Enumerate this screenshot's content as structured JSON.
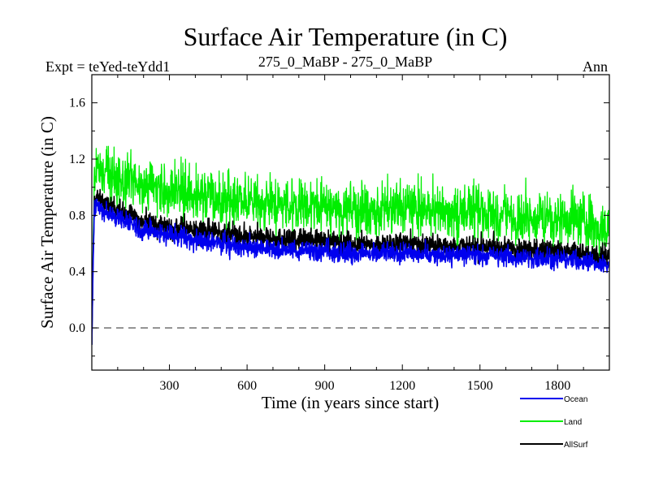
{
  "chart_data": {
    "type": "line",
    "title": "Surface Air Temperature (in C)",
    "subtitle_left": "Expt = teYed-teYdd1",
    "subtitle_center": "275_0_MaBP - 275_0_MaBP",
    "subtitle_right": "Ann",
    "xlabel": "Time (in years since start)",
    "ylabel": "Surface Air Temperature (in C)",
    "xlim": [
      0,
      2000
    ],
    "ylim": [
      -0.3,
      1.8
    ],
    "xticks": [
      300,
      600,
      900,
      1200,
      1500,
      1800
    ],
    "xtick_labels": [
      "300",
      "600",
      "900",
      "1200",
      "1500",
      "1800"
    ],
    "yticks": [
      0.0,
      0.4,
      0.8,
      1.2,
      1.6
    ],
    "ytick_labels": [
      "0.0",
      "0.4",
      "0.8",
      "1.2",
      "1.6"
    ],
    "zero_line": 0.0,
    "legend_position": "bottom-right",
    "series": [
      {
        "name": "Land",
        "color": "#00ee00",
        "x": [
          0,
          5,
          10,
          20,
          40,
          60,
          100,
          150,
          200,
          250,
          300,
          400,
          500,
          600,
          700,
          800,
          900,
          1000,
          1100,
          1200,
          1300,
          1400,
          1500,
          1600,
          1700,
          1800,
          1900,
          2000
        ],
        "values": [
          -0.12,
          0.6,
          1.05,
          1.15,
          1.08,
          1.1,
          1.06,
          1.04,
          1.02,
          1.0,
          0.98,
          0.95,
          0.92,
          0.88,
          0.87,
          0.88,
          0.86,
          0.84,
          0.83,
          0.85,
          0.84,
          0.82,
          0.83,
          0.8,
          0.79,
          0.78,
          0.74,
          0.7
        ],
        "noise": 0.22
      },
      {
        "name": "AllSurf",
        "color": "#000000",
        "x": [
          0,
          5,
          10,
          20,
          40,
          60,
          100,
          150,
          200,
          250,
          300,
          400,
          500,
          600,
          700,
          800,
          900,
          1000,
          1100,
          1200,
          1300,
          1400,
          1500,
          1600,
          1700,
          1800,
          1900,
          2000
        ],
        "values": [
          -0.12,
          0.5,
          0.9,
          0.95,
          0.9,
          0.88,
          0.84,
          0.8,
          0.76,
          0.74,
          0.72,
          0.7,
          0.67,
          0.64,
          0.64,
          0.63,
          0.62,
          0.6,
          0.6,
          0.6,
          0.59,
          0.58,
          0.58,
          0.57,
          0.56,
          0.55,
          0.52,
          0.5
        ],
        "noise": 0.09
      },
      {
        "name": "Ocean",
        "color": "#0000ee",
        "x": [
          0,
          5,
          10,
          20,
          40,
          60,
          100,
          150,
          200,
          250,
          300,
          400,
          500,
          600,
          700,
          800,
          900,
          1000,
          1100,
          1200,
          1300,
          1400,
          1500,
          1600,
          1700,
          1800,
          1900,
          2000
        ],
        "values": [
          -0.12,
          0.45,
          0.85,
          0.88,
          0.84,
          0.82,
          0.78,
          0.74,
          0.7,
          0.68,
          0.66,
          0.63,
          0.6,
          0.57,
          0.56,
          0.55,
          0.55,
          0.53,
          0.53,
          0.53,
          0.52,
          0.52,
          0.52,
          0.51,
          0.5,
          0.49,
          0.47,
          0.44
        ],
        "noise": 0.08
      }
    ],
    "legend": [
      {
        "name": "Ocean",
        "color": "#0000ee"
      },
      {
        "name": "Land",
        "color": "#00ee00"
      },
      {
        "name": "AllSurf",
        "color": "#000000"
      }
    ]
  }
}
